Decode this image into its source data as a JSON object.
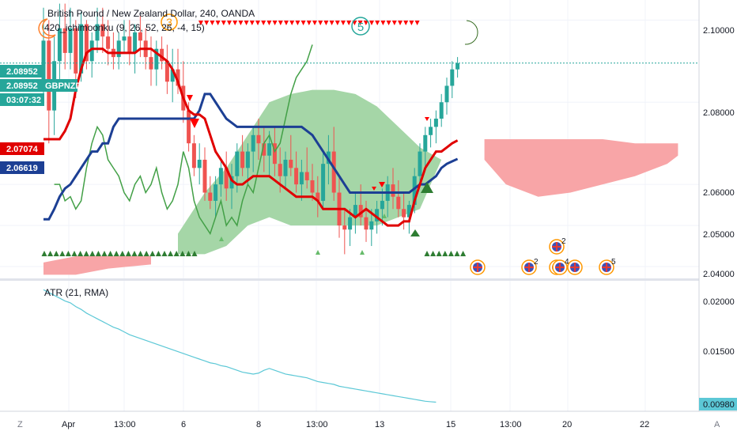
{
  "header": {
    "title": "British Pound / New Zealand Dollar, 240, OANDA",
    "indicator_label": "420_ichimoonku (9, 26, 52, 26, -4, 15)",
    "atr_label": "ATR (21, RMA)"
  },
  "price_axis": {
    "ticks": [
      "2.10000",
      "2.08000",
      "2.06000",
      "2.05000",
      "2.04000"
    ],
    "tags": {
      "last_price": "2.08952",
      "symbol_price": "2.08952",
      "symbol": "GBPNZD",
      "countdown": "03:07:32",
      "kijun": "2.07074",
      "tenkan_blue": "2.06619"
    }
  },
  "atr_axis": {
    "ticks": [
      "0.02000",
      "0.01500"
    ],
    "tag": "0.00980"
  },
  "time_axis": {
    "ticks": [
      "Apr",
      "13:00",
      "6",
      "8",
      "13:00",
      "13",
      "15",
      "13:00",
      "20",
      "22"
    ]
  },
  "corner_buttons": {
    "left": "Z",
    "right": "A"
  },
  "event_badges": [
    "2",
    "2",
    "4",
    "5"
  ],
  "colors": {
    "up": "#26a69a",
    "down": "#ef5350",
    "kijun_red": "#e00000",
    "tenkan_blue": "#1c3f94",
    "chikou_green": "#43a047",
    "cloud_bull": "#a5d6a7",
    "cloud_bear": "#f8a5a7",
    "atr_line": "#5cc8d6",
    "marker_red": "#ff0000",
    "marker_green": "#2e7d32"
  },
  "chart_data": {
    "type": "candlestick",
    "symbol": "GBPNZD",
    "timeframe": "240",
    "ylim": [
      2.0375,
      2.1045
    ],
    "last_price": 2.08952,
    "kijun_value": 2.07074,
    "tenkan_value": 2.06619,
    "candles": [
      [
        2.085,
        2.103,
        2.08,
        2.095
      ],
      [
        2.095,
        2.1,
        2.07,
        2.078
      ],
      [
        2.078,
        2.096,
        2.072,
        2.09
      ],
      [
        2.09,
        2.104,
        2.085,
        2.098
      ],
      [
        2.098,
        2.104,
        2.088,
        2.092
      ],
      [
        2.092,
        2.103,
        2.088,
        2.098
      ],
      [
        2.098,
        2.1,
        2.081,
        2.087
      ],
      [
        2.087,
        2.102,
        2.085,
        2.099
      ],
      [
        2.099,
        2.1,
        2.088,
        2.09
      ],
      [
        2.09,
        2.097,
        2.086,
        2.095
      ],
      [
        2.095,
        2.103,
        2.092,
        2.099
      ],
      [
        2.099,
        2.103,
        2.092,
        2.096
      ],
      [
        2.096,
        2.1,
        2.089,
        2.093
      ],
      [
        2.093,
        2.097,
        2.088,
        2.091
      ],
      [
        2.091,
        2.097,
        2.088,
        2.095
      ],
      [
        2.095,
        2.1,
        2.092,
        2.096
      ],
      [
        2.096,
        2.1,
        2.089,
        2.092
      ],
      [
        2.092,
        2.099,
        2.087,
        2.097
      ],
      [
        2.097,
        2.101,
        2.091,
        2.095
      ],
      [
        2.095,
        2.098,
        2.088,
        2.091
      ],
      [
        2.091,
        2.096,
        2.084,
        2.088
      ],
      [
        2.088,
        2.095,
        2.084,
        2.093
      ],
      [
        2.093,
        2.096,
        2.088,
        2.09
      ],
      [
        2.09,
        2.094,
        2.082,
        2.085
      ],
      [
        2.085,
        2.093,
        2.08,
        2.088
      ],
      [
        2.088,
        2.093,
        2.082,
        2.084
      ],
      [
        2.084,
        2.09,
        2.075,
        2.078
      ],
      [
        2.078,
        2.08,
        2.068,
        2.07
      ],
      [
        2.07,
        2.072,
        2.062,
        2.064
      ],
      [
        2.064,
        2.07,
        2.06,
        2.066
      ],
      [
        2.066,
        2.069,
        2.056,
        2.058
      ],
      [
        2.058,
        2.062,
        2.054,
        2.056
      ],
      [
        2.056,
        2.062,
        2.052,
        2.06
      ],
      [
        2.06,
        2.066,
        2.057,
        2.064
      ],
      [
        2.064,
        2.068,
        2.056,
        2.059
      ],
      [
        2.059,
        2.065,
        2.054,
        2.062
      ],
      [
        2.062,
        2.07,
        2.058,
        2.068
      ],
      [
        2.068,
        2.072,
        2.062,
        2.064
      ],
      [
        2.064,
        2.07,
        2.06,
        2.068
      ],
      [
        2.068,
        2.074,
        2.063,
        2.072
      ],
      [
        2.072,
        2.076,
        2.066,
        2.07
      ],
      [
        2.07,
        2.074,
        2.063,
        2.067
      ],
      [
        2.067,
        2.073,
        2.062,
        2.07
      ],
      [
        2.07,
        2.074,
        2.062,
        2.065
      ],
      [
        2.065,
        2.069,
        2.058,
        2.062
      ],
      [
        2.062,
        2.068,
        2.059,
        2.066
      ],
      [
        2.066,
        2.072,
        2.062,
        2.064
      ],
      [
        2.064,
        2.068,
        2.058,
        2.06
      ],
      [
        2.06,
        2.066,
        2.056,
        2.063
      ],
      [
        2.063,
        2.069,
        2.059,
        2.061
      ],
      [
        2.061,
        2.065,
        2.056,
        2.058
      ],
      [
        2.058,
        2.062,
        2.052,
        2.056
      ],
      [
        2.056,
        2.068,
        2.054,
        2.065
      ],
      [
        2.065,
        2.072,
        2.06,
        2.068
      ],
      [
        2.068,
        2.074,
        2.056,
        2.058
      ],
      [
        2.058,
        2.062,
        2.047,
        2.05
      ],
      [
        2.05,
        2.054,
        2.043,
        2.049
      ],
      [
        2.049,
        2.054,
        2.045,
        2.052
      ],
      [
        2.052,
        2.058,
        2.048,
        2.055
      ],
      [
        2.055,
        2.06,
        2.05,
        2.052
      ],
      [
        2.052,
        2.056,
        2.046,
        2.049
      ],
      [
        2.049,
        2.054,
        2.045,
        2.051
      ],
      [
        2.051,
        2.056,
        2.048,
        2.054
      ],
      [
        2.054,
        2.059,
        2.05,
        2.056
      ],
      [
        2.056,
        2.062,
        2.052,
        2.06
      ],
      [
        2.06,
        2.064,
        2.054,
        2.057
      ],
      [
        2.057,
        2.061,
        2.052,
        2.054
      ],
      [
        2.054,
        2.058,
        2.049,
        2.052
      ],
      [
        2.052,
        2.056,
        2.048,
        2.055
      ],
      [
        2.055,
        2.064,
        2.053,
        2.062
      ],
      [
        2.062,
        2.07,
        2.06,
        2.068
      ],
      [
        2.068,
        2.074,
        2.064,
        2.072
      ],
      [
        2.072,
        2.076,
        2.069,
        2.074
      ],
      [
        2.074,
        2.078,
        2.07,
        2.076
      ],
      [
        2.076,
        2.082,
        2.074,
        2.08
      ],
      [
        2.08,
        2.086,
        2.077,
        2.084
      ],
      [
        2.084,
        2.09,
        2.081,
        2.088
      ],
      [
        2.088,
        2.091,
        2.086,
        2.0895
      ]
    ],
    "kijun": [
      2.071,
      2.071,
      2.071,
      2.071,
      2.073,
      2.076,
      2.083,
      2.088,
      2.092,
      2.093,
      2.093,
      2.093,
      2.092,
      2.092,
      2.092,
      2.092,
      2.092,
      2.092,
      2.093,
      2.093,
      2.093,
      2.092,
      2.091,
      2.09,
      2.088,
      2.085,
      2.081,
      2.078,
      2.077,
      2.077,
      2.076,
      2.072,
      2.068,
      2.066,
      2.064,
      2.061,
      2.06,
      2.06,
      2.061,
      2.062,
      2.062,
      2.062,
      2.062,
      2.061,
      2.06,
      2.059,
      2.058,
      2.057,
      2.057,
      2.057,
      2.057,
      2.056,
      2.054,
      2.054,
      2.054,
      2.054,
      2.054,
      2.053,
      2.052,
      2.053,
      2.054,
      2.053,
      2.052,
      2.051,
      2.05,
      2.05,
      2.05,
      2.051,
      2.051,
      2.056,
      2.06,
      2.064,
      2.066,
      2.068,
      2.068,
      2.069,
      2.07,
      2.0707
    ],
    "tenkan": [
      2.0515,
      2.0515,
      2.054,
      2.057,
      2.059,
      2.06,
      2.062,
      2.064,
      2.066,
      2.068,
      2.068,
      2.07,
      2.07,
      2.074,
      2.076,
      2.076,
      2.076,
      2.076,
      2.076,
      2.076,
      2.076,
      2.076,
      2.076,
      2.076,
      2.076,
      2.076,
      2.076,
      2.076,
      2.076,
      2.078,
      2.082,
      2.082,
      2.08,
      2.078,
      2.076,
      2.075,
      2.074,
      2.074,
      2.074,
      2.074,
      2.074,
      2.074,
      2.074,
      2.074,
      2.074,
      2.074,
      2.074,
      2.074,
      2.074,
      2.073,
      2.072,
      2.07,
      2.068,
      2.066,
      2.064,
      2.062,
      2.06,
      2.058,
      2.058,
      2.058,
      2.058,
      2.058,
      2.058,
      2.058,
      2.058,
      2.058,
      2.058,
      2.058,
      2.058,
      2.059,
      2.06,
      2.06,
      2.061,
      2.062,
      2.064,
      2.065,
      2.0656,
      2.0662
    ],
    "chikou": [
      2.06,
      2.06,
      2.056,
      2.057,
      2.054,
      2.056,
      2.064,
      2.07,
      2.074,
      2.072,
      2.066,
      2.064,
      2.062,
      2.058,
      2.056,
      2.06,
      2.062,
      2.058,
      2.06,
      2.064,
      2.058,
      2.054,
      2.056,
      2.06,
      2.068,
      2.064,
      2.056,
      2.052,
      2.05,
      2.048,
      2.052,
      2.056,
      2.05,
      2.052,
      2.05,
      2.056,
      2.06,
      2.058,
      2.064,
      2.07,
      2.072,
      2.068,
      2.07,
      2.076,
      2.082,
      2.086,
      2.088,
      2.09,
      2.094
    ],
    "cloud_bull": {
      "upper": [
        [
          25,
          2.048
        ],
        [
          30,
          2.058
        ],
        [
          34,
          2.064
        ],
        [
          38,
          2.072
        ],
        [
          42,
          2.08
        ],
        [
          46,
          2.082
        ],
        [
          50,
          2.083
        ],
        [
          54,
          2.083
        ],
        [
          58,
          2.082
        ],
        [
          62,
          2.079
        ],
        [
          66,
          2.074
        ],
        [
          70,
          2.069
        ],
        [
          74,
          2.066
        ]
      ],
      "lower": [
        [
          74,
          2.066
        ],
        [
          70,
          2.054
        ],
        [
          66,
          2.052
        ],
        [
          62,
          2.05
        ],
        [
          58,
          2.05
        ],
        [
          54,
          2.05
        ],
        [
          50,
          2.05
        ],
        [
          46,
          2.05
        ],
        [
          42,
          2.052
        ],
        [
          38,
          2.05
        ],
        [
          34,
          2.045
        ],
        [
          30,
          2.043
        ],
        [
          25,
          2.043
        ]
      ]
    },
    "cloud_bear": {
      "upper": [
        [
          82,
          2.071
        ],
        [
          86,
          2.071
        ],
        [
          92,
          2.071
        ],
        [
          98,
          2.071
        ],
        [
          104,
          2.071
        ],
        [
          110,
          2.07
        ],
        [
          116,
          2.07
        ],
        [
          118,
          2.07
        ]
      ],
      "lower": [
        [
          118,
          2.067
        ],
        [
          116,
          2.065
        ],
        [
          110,
          2.062
        ],
        [
          104,
          2.06
        ],
        [
          98,
          2.058
        ],
        [
          92,
          2.057
        ],
        [
          86,
          2.06
        ],
        [
          82,
          2.066
        ]
      ]
    },
    "cloud_bear_left": {
      "upper": [
        [
          0,
          2.041
        ],
        [
          6,
          2.0425
        ],
        [
          12,
          2.0425
        ],
        [
          20,
          2.0425
        ]
      ],
      "lower": [
        [
          20,
          2.0405
        ],
        [
          12,
          2.0395
        ],
        [
          6,
          2.038
        ],
        [
          0,
          2.038
        ]
      ]
    },
    "atr": [
      0.0218,
      0.0215,
      0.0212,
      0.0209,
      0.0206,
      0.0204,
      0.02,
      0.0197,
      0.0193,
      0.019,
      0.0187,
      0.0184,
      0.0181,
      0.0178,
      0.0176,
      0.0173,
      0.017,
      0.0168,
      0.0166,
      0.0164,
      0.0162,
      0.016,
      0.0158,
      0.0156,
      0.0154,
      0.0152,
      0.015,
      0.0148,
      0.0146,
      0.0144,
      0.0142,
      0.014,
      0.0139,
      0.0137,
      0.0136,
      0.0134,
      0.0132,
      0.013,
      0.0129,
      0.0128,
      0.0129,
      0.0132,
      0.0134,
      0.0132,
      0.013,
      0.0128,
      0.0127,
      0.0126,
      0.0125,
      0.0124,
      0.0122,
      0.012,
      0.0119,
      0.0118,
      0.0117,
      0.0115,
      0.0114,
      0.0113,
      0.0112,
      0.0111,
      0.011,
      0.0109,
      0.0108,
      0.0107,
      0.0106,
      0.0105,
      0.0104,
      0.0103,
      0.0102,
      0.0101,
      0.01,
      0.0099,
      0.00985,
      0.0098
    ],
    "atr_ylim": [
      0.009,
      0.0225
    ],
    "atr_last": 0.0098
  }
}
